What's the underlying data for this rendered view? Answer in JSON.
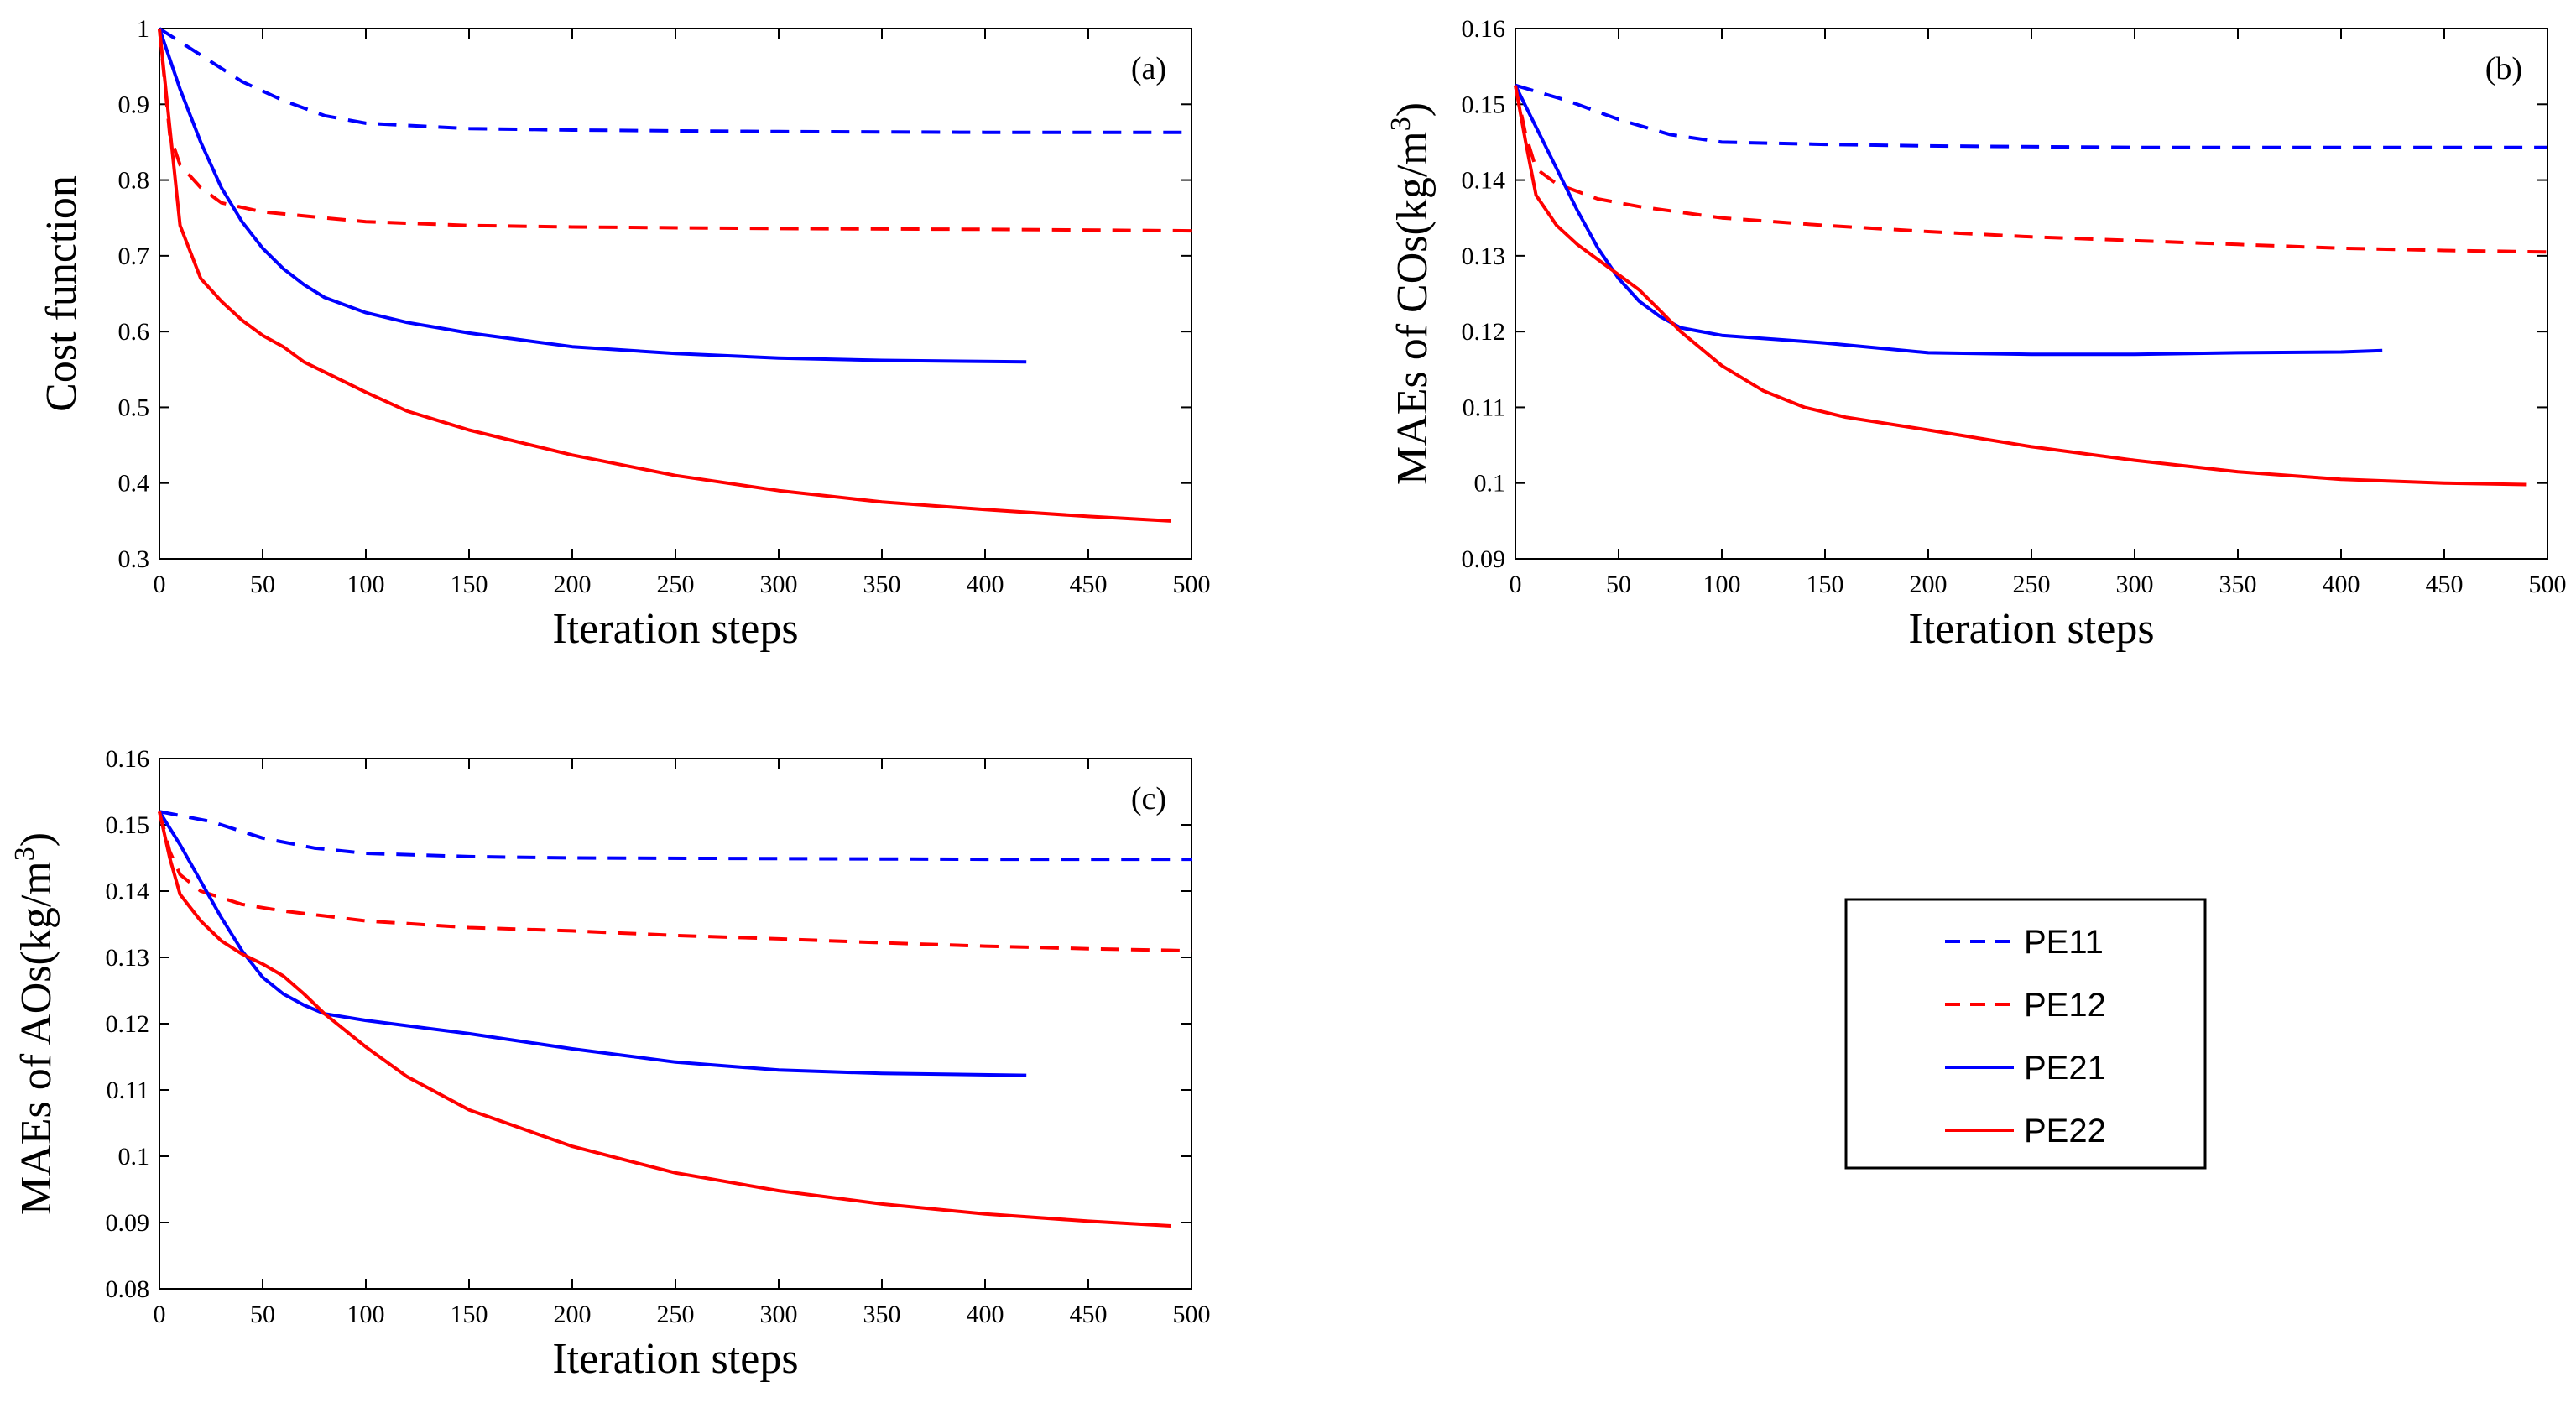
{
  "legend": {
    "entries": [
      {
        "name": "PE11",
        "color": "#0000ff",
        "dash": true
      },
      {
        "name": "PE12",
        "color": "#ff0000",
        "dash": true
      },
      {
        "name": "PE21",
        "color": "#0000ff",
        "dash": false
      },
      {
        "name": "PE22",
        "color": "#ff0000",
        "dash": false
      }
    ]
  },
  "chart_data": [
    {
      "type": "line",
      "panel": "(a)",
      "xlabel": "Iteration steps",
      "ylabel": "Cost function",
      "ylabel_sup": "",
      "ylabel_tail": "",
      "xlim": [
        0,
        500
      ],
      "ylim": [
        0.3,
        1.0
      ],
      "xticks": [
        0,
        50,
        100,
        150,
        200,
        250,
        300,
        350,
        400,
        450,
        500
      ],
      "yticks": [
        0.3,
        0.4,
        0.5,
        0.6,
        0.7,
        0.8,
        0.9,
        1.0
      ],
      "ytick_labels": [
        "0.3",
        "0.4",
        "0.5",
        "0.6",
        "0.7",
        "0.8",
        "0.9",
        "1"
      ],
      "series": [
        {
          "name": "PE11",
          "color": "#0000ff",
          "dash": true,
          "x": [
            0,
            20,
            40,
            60,
            80,
            100,
            150,
            200,
            300,
            400,
            500
          ],
          "y": [
            1.0,
            0.965,
            0.93,
            0.905,
            0.885,
            0.875,
            0.868,
            0.866,
            0.864,
            0.863,
            0.863
          ]
        },
        {
          "name": "PE12",
          "color": "#ff0000",
          "dash": true,
          "x": [
            0,
            5,
            10,
            20,
            30,
            50,
            80,
            100,
            150,
            200,
            300,
            400,
            500
          ],
          "y": [
            1.0,
            0.86,
            0.82,
            0.79,
            0.77,
            0.758,
            0.75,
            0.745,
            0.74,
            0.738,
            0.736,
            0.735,
            0.733
          ]
        },
        {
          "name": "PE21",
          "color": "#0000ff",
          "dash": false,
          "x": [
            0,
            10,
            20,
            30,
            40,
            50,
            60,
            70,
            80,
            100,
            120,
            150,
            200,
            250,
            300,
            350,
            420
          ],
          "y": [
            1.0,
            0.92,
            0.85,
            0.79,
            0.745,
            0.71,
            0.683,
            0.662,
            0.645,
            0.625,
            0.612,
            0.598,
            0.58,
            0.571,
            0.565,
            0.562,
            0.56
          ]
        },
        {
          "name": "PE22",
          "color": "#ff0000",
          "dash": false,
          "x": [
            0,
            5,
            10,
            20,
            30,
            40,
            50,
            60,
            70,
            100,
            120,
            150,
            200,
            250,
            300,
            350,
            400,
            450,
            490
          ],
          "y": [
            1.0,
            0.87,
            0.74,
            0.67,
            0.64,
            0.615,
            0.595,
            0.58,
            0.56,
            0.52,
            0.495,
            0.47,
            0.437,
            0.41,
            0.39,
            0.375,
            0.365,
            0.356,
            0.35
          ]
        }
      ]
    },
    {
      "type": "line",
      "panel": "(b)",
      "xlabel": "Iteration steps",
      "ylabel": "MAEs of COs(kg/m",
      "ylabel_sup": "3",
      "ylabel_tail": ")",
      "xlim": [
        0,
        500
      ],
      "ylim": [
        0.09,
        0.16
      ],
      "xticks": [
        0,
        50,
        100,
        150,
        200,
        250,
        300,
        350,
        400,
        450,
        500
      ],
      "yticks": [
        0.09,
        0.1,
        0.11,
        0.12,
        0.13,
        0.14,
        0.15,
        0.16
      ],
      "ytick_labels": [
        "0.09",
        "0.1",
        "0.11",
        "0.12",
        "0.13",
        "0.14",
        "0.15",
        "0.16"
      ],
      "series": [
        {
          "name": "PE11",
          "color": "#0000ff",
          "dash": true,
          "x": [
            0,
            25,
            50,
            75,
            100,
            150,
            200,
            300,
            400,
            500
          ],
          "y": [
            0.1525,
            0.1505,
            0.148,
            0.146,
            0.145,
            0.1447,
            0.1445,
            0.1443,
            0.1443,
            0.1443
          ]
        },
        {
          "name": "PE12",
          "color": "#ff0000",
          "dash": true,
          "x": [
            0,
            5,
            10,
            20,
            40,
            60,
            100,
            150,
            200,
            250,
            300,
            350,
            400,
            450,
            500
          ],
          "y": [
            0.1525,
            0.146,
            0.1415,
            0.1395,
            0.1375,
            0.1365,
            0.135,
            0.134,
            0.1332,
            0.1325,
            0.132,
            0.1315,
            0.131,
            0.1307,
            0.1305
          ]
        },
        {
          "name": "PE21",
          "color": "#0000ff",
          "dash": false,
          "x": [
            0,
            10,
            20,
            30,
            40,
            50,
            60,
            70,
            80,
            100,
            150,
            200,
            250,
            300,
            350,
            400,
            420
          ],
          "y": [
            0.1525,
            0.147,
            0.1415,
            0.136,
            0.131,
            0.127,
            0.124,
            0.122,
            0.1205,
            0.1195,
            0.1185,
            0.1172,
            0.117,
            0.117,
            0.1172,
            0.1173,
            0.1175
          ]
        },
        {
          "name": "PE22",
          "color": "#ff0000",
          "dash": false,
          "x": [
            0,
            5,
            10,
            20,
            30,
            40,
            50,
            60,
            70,
            80,
            100,
            120,
            140,
            160,
            200,
            250,
            300,
            350,
            400,
            450,
            490
          ],
          "y": [
            0.1525,
            0.145,
            0.138,
            0.134,
            0.1315,
            0.1295,
            0.1275,
            0.1255,
            0.1228,
            0.12,
            0.1155,
            0.1122,
            0.11,
            0.1087,
            0.107,
            0.1048,
            0.103,
            0.1015,
            0.1005,
            0.1,
            0.0998
          ]
        }
      ]
    },
    {
      "type": "line",
      "panel": "(c)",
      "xlabel": "Iteration steps",
      "ylabel": "MAEs of AOs(kg/m",
      "ylabel_sup": "3",
      "ylabel_tail": ")",
      "xlim": [
        0,
        500
      ],
      "ylim": [
        0.08,
        0.16
      ],
      "xticks": [
        0,
        50,
        100,
        150,
        200,
        250,
        300,
        350,
        400,
        450,
        500
      ],
      "yticks": [
        0.08,
        0.09,
        0.1,
        0.11,
        0.12,
        0.13,
        0.14,
        0.15,
        0.16
      ],
      "ytick_labels": [
        "0.08",
        "0.09",
        "0.1",
        "0.11",
        "0.12",
        "0.13",
        "0.14",
        "0.15",
        "0.16"
      ],
      "series": [
        {
          "name": "PE11",
          "color": "#0000ff",
          "dash": true,
          "x": [
            0,
            25,
            50,
            75,
            100,
            150,
            200,
            300,
            400,
            500
          ],
          "y": [
            0.152,
            0.1505,
            0.148,
            0.1465,
            0.1457,
            0.1452,
            0.145,
            0.1449,
            0.1448,
            0.1448
          ]
        },
        {
          "name": "PE12",
          "color": "#ff0000",
          "dash": true,
          "x": [
            0,
            5,
            10,
            20,
            40,
            60,
            100,
            150,
            200,
            250,
            300,
            350,
            400,
            450,
            500
          ],
          "y": [
            0.152,
            0.146,
            0.1425,
            0.14,
            0.138,
            0.137,
            0.1355,
            0.1345,
            0.134,
            0.1333,
            0.1328,
            0.1322,
            0.1317,
            0.1313,
            0.131
          ]
        },
        {
          "name": "PE21",
          "color": "#0000ff",
          "dash": false,
          "x": [
            0,
            10,
            20,
            30,
            40,
            50,
            60,
            70,
            80,
            100,
            150,
            200,
            250,
            300,
            350,
            420
          ],
          "y": [
            0.152,
            0.147,
            0.1415,
            0.136,
            0.131,
            0.127,
            0.1245,
            0.1228,
            0.1215,
            0.1205,
            0.1185,
            0.1162,
            0.1142,
            0.113,
            0.1125,
            0.1122
          ]
        },
        {
          "name": "PE22",
          "color": "#ff0000",
          "dash": false,
          "x": [
            0,
            5,
            10,
            20,
            30,
            40,
            50,
            60,
            70,
            80,
            100,
            120,
            150,
            200,
            250,
            300,
            350,
            400,
            450,
            490
          ],
          "y": [
            0.152,
            0.145,
            0.1395,
            0.1355,
            0.1325,
            0.1305,
            0.129,
            0.1272,
            0.1245,
            0.1215,
            0.1165,
            0.112,
            0.107,
            0.1015,
            0.0975,
            0.0948,
            0.0928,
            0.0913,
            0.0902,
            0.0895
          ]
        }
      ]
    }
  ]
}
